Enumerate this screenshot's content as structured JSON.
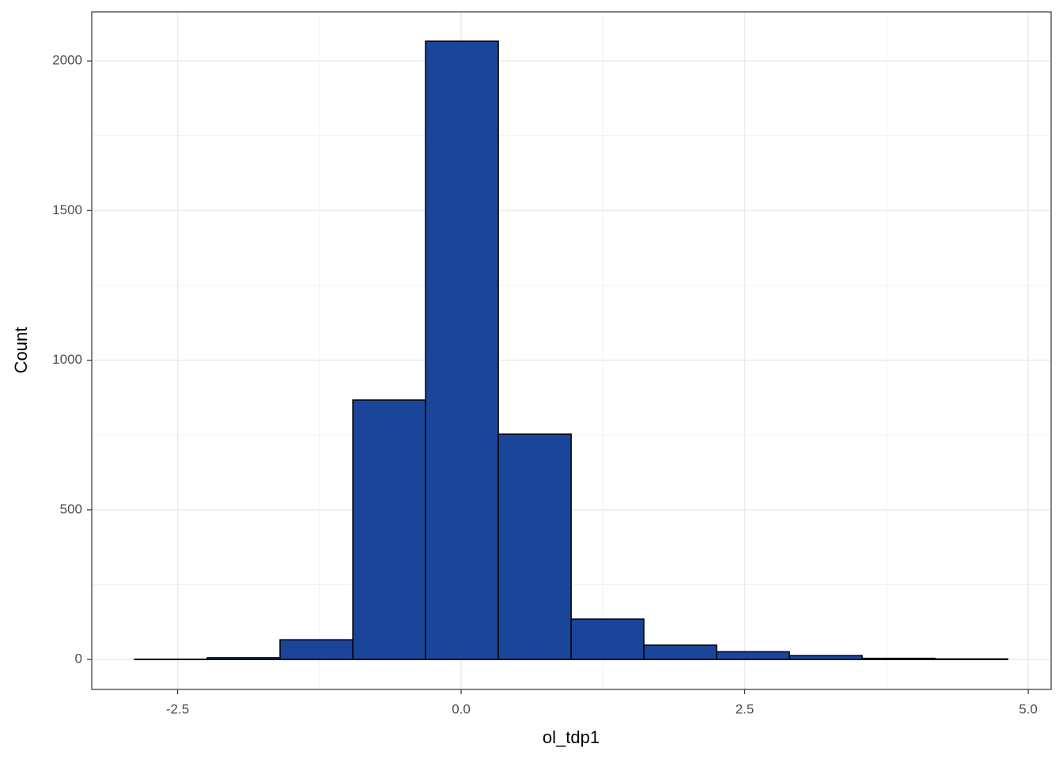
{
  "chart_data": {
    "type": "histogram",
    "x_label": "ol_tdp1",
    "y_label": "Count",
    "bins": [
      -2.88,
      -2.238,
      -1.597,
      -0.955,
      -0.314,
      0.328,
      0.97,
      1.611,
      2.253,
      2.894,
      3.536,
      4.177,
      4.819
    ],
    "counts": [
      1,
      6,
      66,
      867,
      2066,
      753,
      135,
      48,
      26,
      13,
      4,
      2
    ],
    "color": "#1a4599",
    "edge_color": "#000000",
    "xlim": [
      -3.257,
      5.202
    ],
    "ylim": [
      -100,
      2164
    ],
    "xticks": [
      -2.5,
      {
        "value": 0,
        "label": "0.0"
      },
      2.5,
      {
        "value": 5,
        "label": "5.0"
      }
    ],
    "yticks": [
      0,
      500,
      1000,
      1500,
      2000
    ],
    "x_minor_ticks": [
      -1.25,
      1.25,
      3.75
    ],
    "y_minor_ticks": [
      250,
      750,
      1250,
      1750
    ],
    "grid": true
  }
}
